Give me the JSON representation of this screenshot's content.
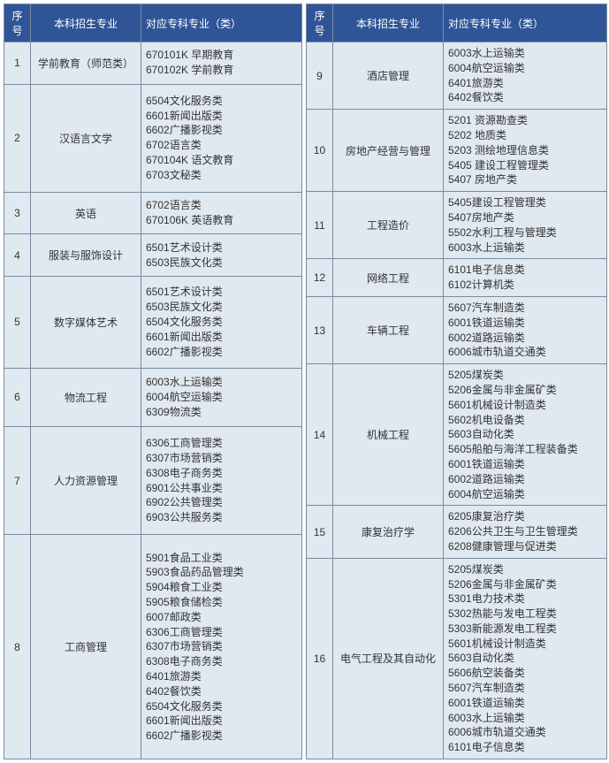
{
  "headers": {
    "idx": "序号",
    "major": "本科招生专业",
    "spec": "对应专科专业（类）"
  },
  "left": [
    {
      "idx": "1",
      "major": "学前教育（师范类）",
      "specs": [
        "670101K  早期教育",
        "670102K  学前教育"
      ]
    },
    {
      "idx": "2",
      "major": "汉语言文学",
      "specs": [
        "6504文化服务类",
        "6601新闻出版类",
        "6602广播影视类",
        "6702语言类",
        "670104K  语文教育",
        "6703文秘类"
      ]
    },
    {
      "idx": "3",
      "major": "英语",
      "specs": [
        "6702语言类",
        "670106K  英语教育"
      ]
    },
    {
      "idx": "4",
      "major": "服装与服饰设计",
      "specs": [
        "6501艺术设计类",
        "6503民族文化类"
      ]
    },
    {
      "idx": "5",
      "major": "数字媒体艺术",
      "specs": [
        "6501艺术设计类",
        "6503民族文化类",
        "6504文化服务类",
        "6601新闻出版类",
        "6602广播影视类"
      ]
    },
    {
      "idx": "6",
      "major": "物流工程",
      "specs": [
        "6003水上运输类",
        "6004航空运输类",
        "6309物流类"
      ]
    },
    {
      "idx": "7",
      "major": "人力资源管理",
      "specs": [
        "6306工商管理类",
        "6307市场营销类",
        "6308电子商务类",
        "6901公共事业类",
        "6902公共管理类",
        "6903公共服务类"
      ]
    },
    {
      "idx": "8",
      "major": "工商管理",
      "specs": [
        "5901食品工业类",
        "5903食品药品管理类",
        "5904粮食工业类",
        "5905粮食储检类",
        "6007邮政类",
        "6306工商管理类",
        "6307市场营销类",
        "6308电子商务类",
        "6401旅游类",
        "6402餐饮类",
        "6504文化服务类",
        "6601新闻出版类",
        "6602广播影视类"
      ]
    }
  ],
  "right": [
    {
      "idx": "9",
      "major": "酒店管理",
      "specs": [
        "6003水上运输类",
        "6004航空运输类",
        "6401旅游类",
        "6402餐饮类"
      ]
    },
    {
      "idx": "10",
      "major": "房地产经营与管理",
      "specs": [
        "5201  资源勘查类",
        "5202  地质类",
        "5203  测绘地理信息类",
        "5405  建设工程管理类",
        "5407  房地产类"
      ]
    },
    {
      "idx": "11",
      "major": "工程造价",
      "specs": [
        "5405建设工程管理类",
        "5407房地产类",
        "5502水利工程与管理类",
        "6003水上运输类"
      ]
    },
    {
      "idx": "12",
      "major": "网络工程",
      "specs": [
        "6101电子信息类",
        "6102计算机类"
      ]
    },
    {
      "idx": "13",
      "major": "车辆工程",
      "specs": [
        "5607汽车制造类",
        "6001铁道运输类",
        "6002道路运输类",
        "6006城市轨道交通类"
      ]
    },
    {
      "idx": "14",
      "major": "机械工程",
      "specs": [
        "5205煤炭类",
        "5206金属与非金属矿类",
        "5601机械设计制造类",
        "5602机电设备类",
        "5603自动化类",
        "5605船舶与海洋工程装备类",
        "6001铁道运输类",
        "6002道路运输类",
        "6004航空运输类"
      ]
    },
    {
      "idx": "15",
      "major": "康复治疗学",
      "specs": [
        "6205康复治疗类",
        "6206公共卫生与卫生管理类",
        "6208健康管理与促进类"
      ]
    },
    {
      "idx": "16",
      "major": "电气工程及其自动化",
      "specs": [
        "5205煤炭类",
        "5206金属与非金属矿类",
        "5301电力技术类",
        "5302热能与发电工程类",
        "5303新能源发电工程类",
        "5601机械设计制造类",
        "5603自动化类",
        "5606航空装备类",
        "5607汽车制造类",
        "6001铁道运输类",
        "6003水上运输类",
        "6006城市轨道交通类",
        "6101电子信息类"
      ]
    }
  ]
}
